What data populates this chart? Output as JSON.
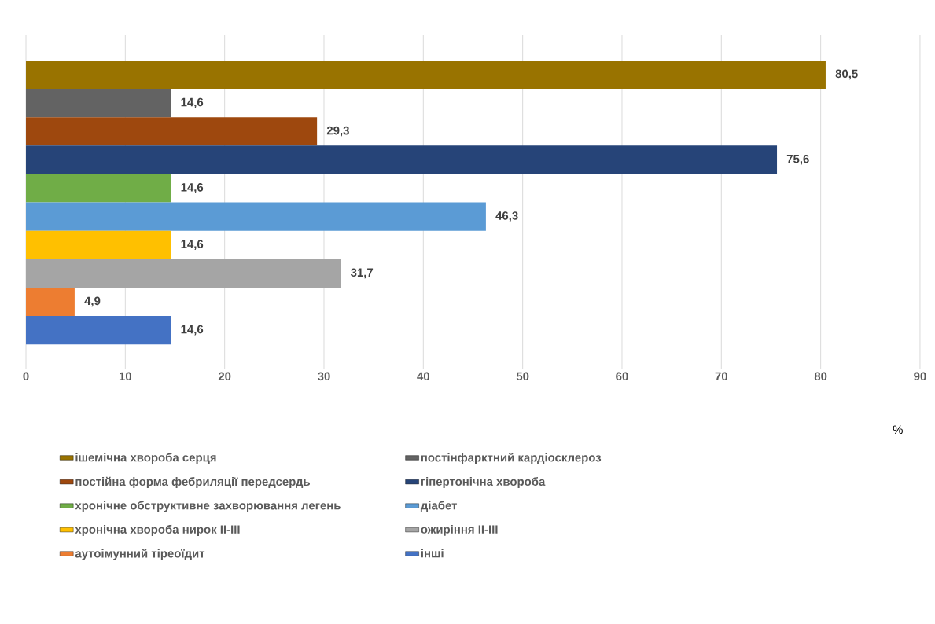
{
  "chart_data": {
    "type": "bar",
    "orientation": "horizontal",
    "categories": [
      null
    ],
    "xlabel": "%",
    "xlim": [
      0,
      90
    ],
    "xticks": [
      0,
      10,
      20,
      30,
      40,
      50,
      60,
      70,
      80,
      90
    ],
    "grid": "x",
    "legend": "bottom",
    "series": [
      {
        "name": "ішемічна хвороба серця",
        "color": "#997300",
        "values": [
          80.5
        ],
        "value_labels": [
          "80,5"
        ]
      },
      {
        "name": "постінфарктний кардіосклероз",
        "color": "#636363",
        "values": [
          14.6
        ],
        "value_labels": [
          "14,6"
        ]
      },
      {
        "name": "постійна форма фебриляції передсердь",
        "color": "#9e480e",
        "values": [
          29.3
        ],
        "value_labels": [
          "29,3"
        ]
      },
      {
        "name": "гіпертонічна хвороба",
        "color": "#264478",
        "values": [
          75.6
        ],
        "value_labels": [
          "75,6"
        ]
      },
      {
        "name": "хронічне обструктивне захворювання легень",
        "color": "#70ad47",
        "values": [
          14.6
        ],
        "value_labels": [
          "14,6"
        ]
      },
      {
        "name": "діабет",
        "color": "#5b9bd5",
        "values": [
          46.3
        ],
        "value_labels": [
          "46,3"
        ]
      },
      {
        "name": "хронічна хвороба нирок ІІ-ІІІ",
        "color": "#ffc000",
        "values": [
          14.6
        ],
        "value_labels": [
          "14,6"
        ]
      },
      {
        "name": "ожиріння ІІ-ІІІ",
        "color": "#a5a5a5",
        "values": [
          31.7
        ],
        "value_labels": [
          "31,7"
        ]
      },
      {
        "name": "аутоімунний тіреоїдит",
        "color": "#ed7d31",
        "values": [
          4.9
        ],
        "value_labels": [
          "4,9"
        ]
      },
      {
        "name": "інші",
        "color": "#4472c4",
        "values": [
          14.6
        ],
        "value_labels": [
          "14,6"
        ]
      }
    ]
  }
}
